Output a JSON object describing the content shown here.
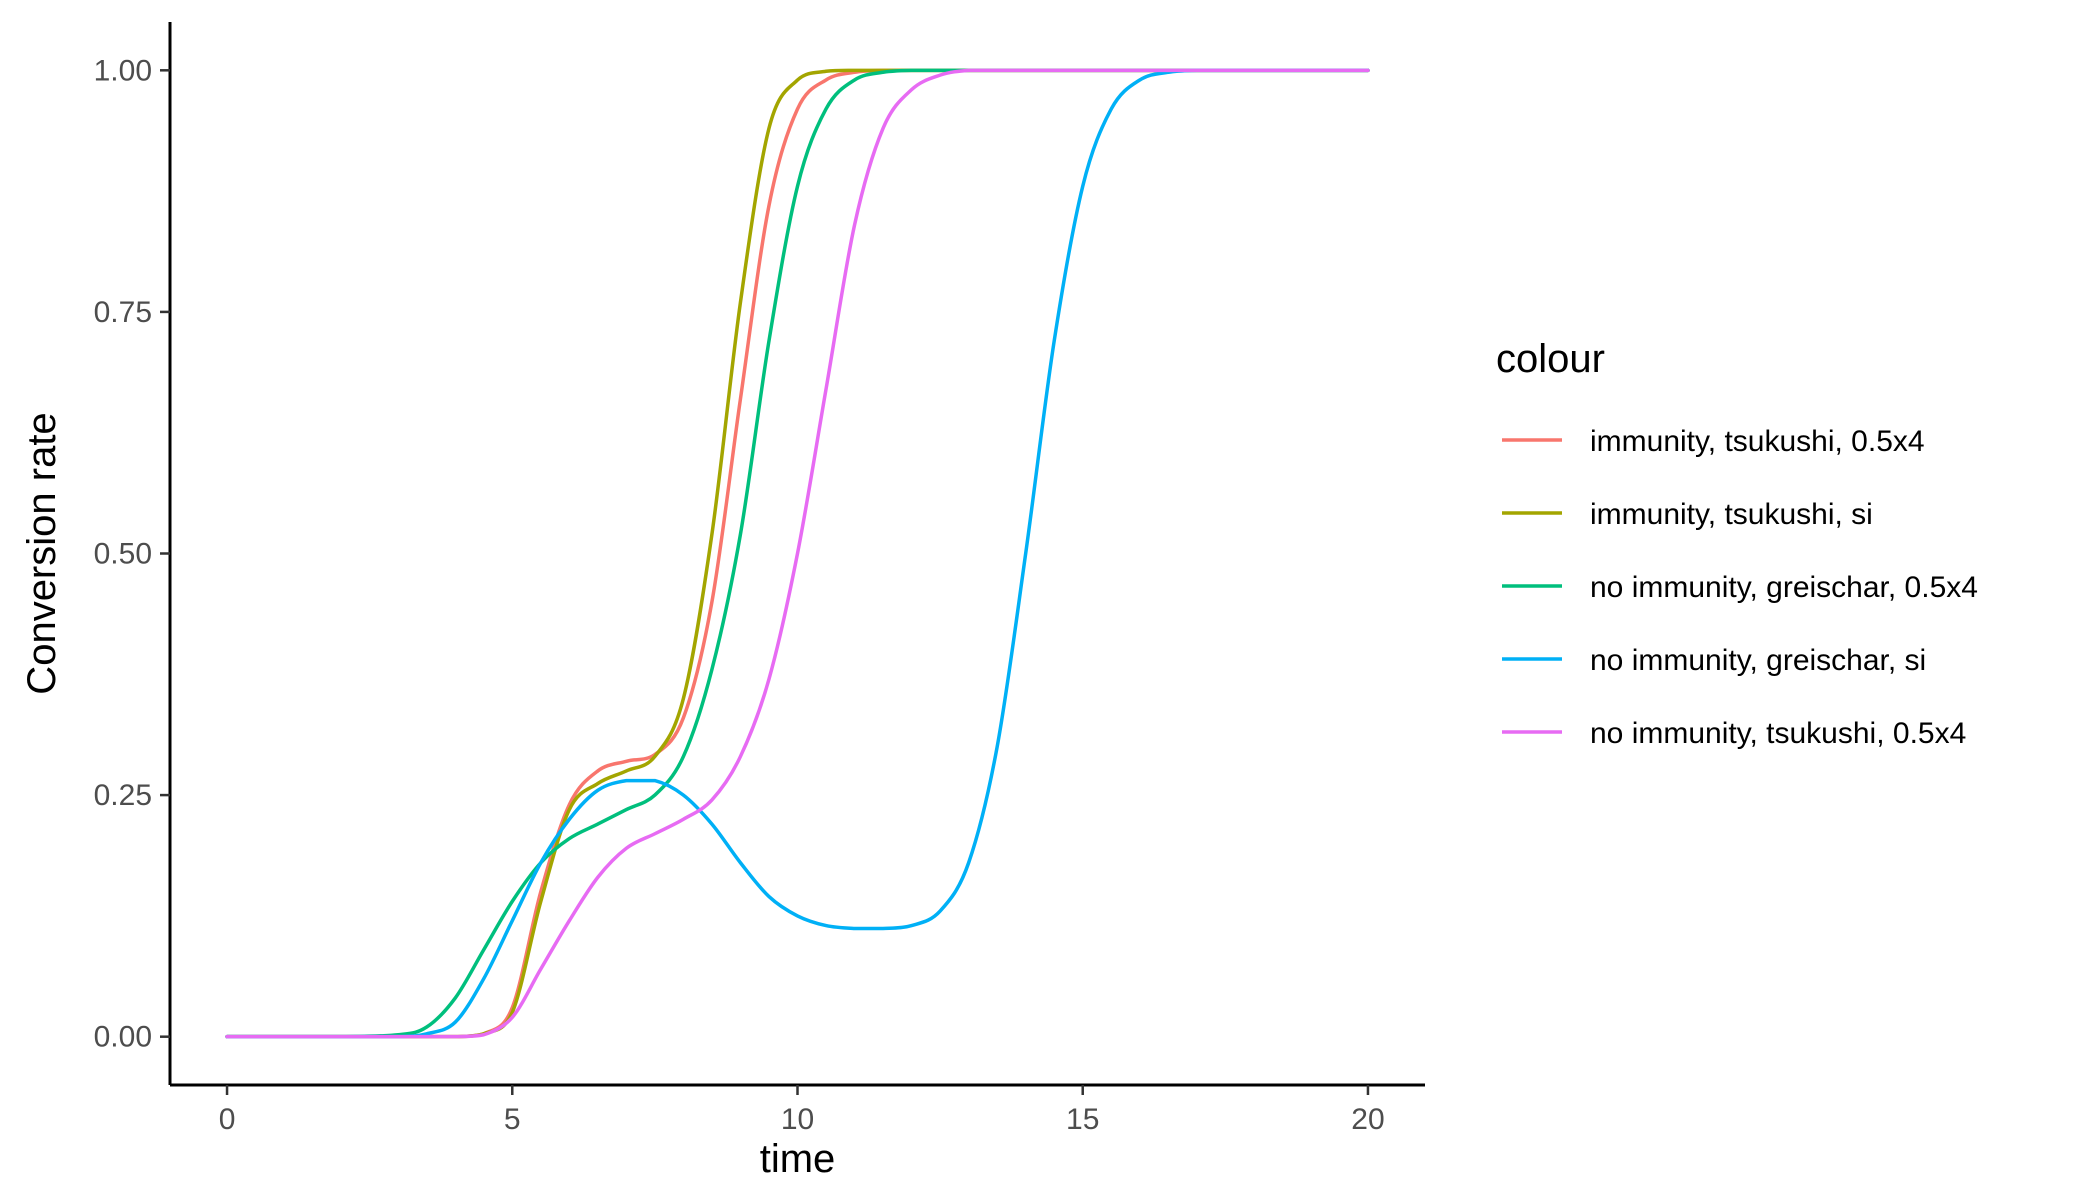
{
  "chart_data": {
    "type": "line",
    "title": "",
    "xlabel": "time",
    "ylabel": "Conversion rate",
    "xlim": [
      -1,
      21
    ],
    "ylim": [
      -0.05,
      1.05
    ],
    "x_ticks": [
      0,
      5,
      10,
      15,
      20
    ],
    "x_tick_labels": [
      "0",
      "5",
      "10",
      "15",
      "20"
    ],
    "y_ticks": [
      0,
      0.25,
      0.5,
      0.75,
      1.0
    ],
    "y_tick_labels": [
      "0.00",
      "0.25",
      "0.50",
      "0.75",
      "1.00"
    ],
    "grid": false,
    "legend": {
      "title": "colour",
      "placement": "right"
    },
    "x": [
      0,
      1,
      2,
      3,
      3.5,
      4,
      4.5,
      5,
      5.5,
      6,
      6.5,
      7,
      7.5,
      8,
      8.5,
      9,
      9.5,
      10,
      10.5,
      11,
      11.5,
      12,
      12.5,
      13,
      13.5,
      14,
      14.5,
      15,
      15.5,
      16,
      16.5,
      17,
      17.5,
      18,
      18.5,
      19,
      19.5,
      20
    ],
    "series": [
      {
        "name": "immunity, tsukushi, 0.5x4",
        "color": "#F8766D",
        "values": [
          0,
          0,
          0,
          0,
          0,
          0,
          0.003,
          0.03,
          0.15,
          0.24,
          0.275,
          0.285,
          0.292,
          0.33,
          0.45,
          0.66,
          0.86,
          0.96,
          0.99,
          0.998,
          1,
          1,
          1,
          1,
          1,
          1,
          1,
          1,
          1,
          1,
          1,
          1,
          1,
          1,
          1,
          1,
          1,
          1
        ]
      },
      {
        "name": "immunity, tsukushi, si",
        "color": "#A3A500",
        "values": [
          0,
          0,
          0,
          0,
          0,
          0,
          0.003,
          0.025,
          0.14,
          0.235,
          0.262,
          0.275,
          0.29,
          0.35,
          0.52,
          0.76,
          0.94,
          0.99,
          0.999,
          1,
          1,
          1,
          1,
          1,
          1,
          1,
          1,
          1,
          1,
          1,
          1,
          1,
          1,
          1,
          1,
          1,
          1,
          1
        ]
      },
      {
        "name": "no immunity, greischar, 0.5x4",
        "color": "#00BF7D",
        "values": [
          0,
          0,
          0,
          0.002,
          0.01,
          0.04,
          0.09,
          0.14,
          0.18,
          0.205,
          0.22,
          0.235,
          0.25,
          0.29,
          0.38,
          0.52,
          0.72,
          0.88,
          0.96,
          0.99,
          0.998,
          1,
          1,
          1,
          1,
          1,
          1,
          1,
          1,
          1,
          1,
          1,
          1,
          1,
          1,
          1,
          1,
          1
        ]
      },
      {
        "name": "no immunity, greischar, si",
        "color": "#00B0F6",
        "values": [
          0,
          0,
          0,
          0,
          0.003,
          0.015,
          0.06,
          0.12,
          0.18,
          0.225,
          0.255,
          0.265,
          0.265,
          0.25,
          0.22,
          0.18,
          0.145,
          0.125,
          0.115,
          0.112,
          0.112,
          0.115,
          0.13,
          0.18,
          0.3,
          0.5,
          0.72,
          0.88,
          0.96,
          0.99,
          0.998,
          1,
          1,
          1,
          1,
          1,
          1,
          1
        ]
      },
      {
        "name": "no immunity, tsukushi, 0.5x4",
        "color": "#E76BF3",
        "values": [
          0,
          0,
          0,
          0,
          0,
          0,
          0.002,
          0.02,
          0.07,
          0.12,
          0.165,
          0.195,
          0.21,
          0.225,
          0.245,
          0.29,
          0.37,
          0.5,
          0.67,
          0.84,
          0.94,
          0.98,
          0.995,
          1,
          1,
          1,
          1,
          1,
          1,
          1,
          1,
          1,
          1,
          1,
          1,
          1,
          1,
          1
        ]
      }
    ]
  }
}
